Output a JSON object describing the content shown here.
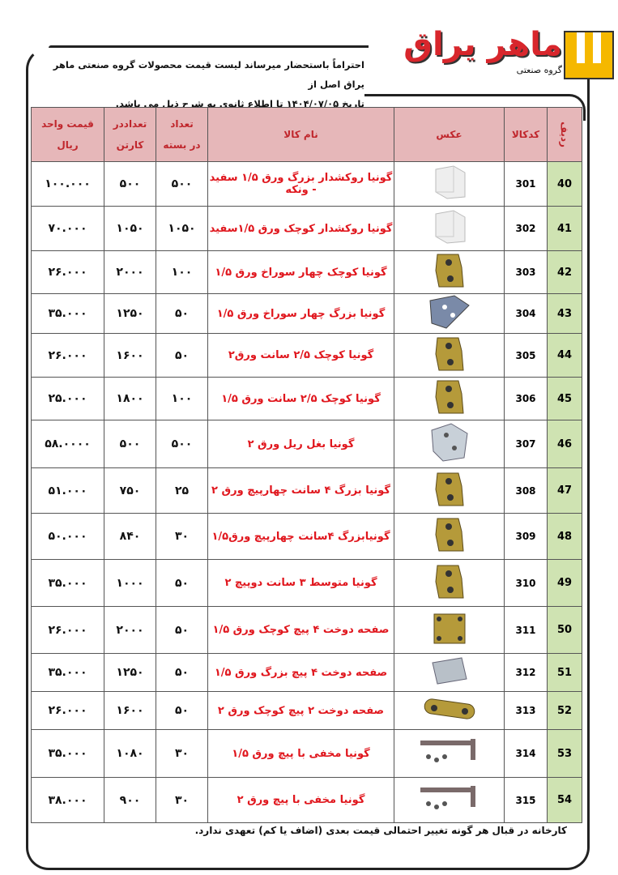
{
  "logo": {
    "name": "ماهر یراق",
    "subtitle": "گروه صنعتی",
    "brand_color": "#d8262c",
    "mark_color": "#f5b800"
  },
  "intro": {
    "line1": "احتراماً باستحضار میرساند لیست قیمت محصولات گروه صنعتی ماهر یراق اصل از",
    "line2": "تاریخ ۱۴۰۴/۰۷/۰۵ تا اطلاع ثانوی به شرح ذیل می باشد."
  },
  "table": {
    "headers": {
      "row": "ردیف",
      "code": "کدکالا",
      "image": "عکس",
      "name": "نام کالا",
      "per_pack_1": "تعداد",
      "per_pack_2": "در بسته",
      "per_carton_1": "تعداددر",
      "per_carton_2": "کارتن",
      "price_1": "قیمت واحد",
      "price_2": "ریال"
    },
    "rows": [
      {
        "row": "40",
        "code": "301",
        "name": "گونیا روکشدار بزرگ ورق ۱/۵ سفید - ونکه",
        "per_pack": "۵۰۰",
        "per_carton": "۵۰۰",
        "price": "۱۰۰.۰۰۰",
        "image": "white-plastic"
      },
      {
        "row": "41",
        "code": "302",
        "name": "گونیا روکشدار کوچک ورق ۱/۵سفید",
        "per_pack": "۱۰۵۰",
        "per_carton": "۱۰۵۰",
        "price": "۷۰.۰۰۰",
        "image": "white-plastic"
      },
      {
        "row": "42",
        "code": "303",
        "name": "گونیا کوچک چهار سوراخ ورق ۱/۵",
        "per_pack": "۱۰۰",
        "per_carton": "۲۰۰۰",
        "price": "۲۶.۰۰۰",
        "image": "gold"
      },
      {
        "row": "43",
        "code": "304",
        "name": "گونیا بزرگ چهار سوراخ ورق ۱/۵",
        "per_pack": "۵۰",
        "per_carton": "۱۲۵۰",
        "price": "۳۵.۰۰۰",
        "image": "blue"
      },
      {
        "row": "44",
        "code": "305",
        "name": "گونیا کوچک ۲/۵ سانت ورق۲",
        "per_pack": "۵۰",
        "per_carton": "۱۶۰۰",
        "price": "۲۶.۰۰۰",
        "image": "gold"
      },
      {
        "row": "45",
        "code": "306",
        "name": "گونیا کوچک ۲/۵ سانت ورق ۱/۵",
        "per_pack": "۱۰۰",
        "per_carton": "۱۸۰۰",
        "price": "۲۵.۰۰۰",
        "image": "gold"
      },
      {
        "row": "46",
        "code": "307",
        "name": "گونیا بغل ریل ورق ۲",
        "per_pack": "۵۰۰",
        "per_carton": "۵۰۰",
        "price": "۵۸.۰۰۰۰",
        "image": "silver"
      },
      {
        "row": "47",
        "code": "308",
        "name": "گونیا بزرگ ۴ سانت چهارپیچ ورق ۲",
        "per_pack": "۲۵",
        "per_carton": "۷۵۰",
        "price": "۵۱.۰۰۰",
        "image": "gold"
      },
      {
        "row": "48",
        "code": "309",
        "name": "گونیابزرگ ۴سانت چهارپیچ ورق۱/۵",
        "per_pack": "۳۰",
        "per_carton": "۸۴۰",
        "price": "۵۰.۰۰۰",
        "image": "gold"
      },
      {
        "row": "49",
        "code": "310",
        "name": "گونیا متوسط ۳ سانت دوپیچ ۲",
        "per_pack": "۵۰",
        "per_carton": "۱۰۰۰",
        "price": "۳۵.۰۰۰",
        "image": "gold"
      },
      {
        "row": "50",
        "code": "311",
        "name": "صفحه دوخت ۴ پیچ کوچک ورق ۱/۵",
        "per_pack": "۵۰",
        "per_carton": "۲۰۰۰",
        "price": "۲۶.۰۰۰",
        "image": "gold-plate"
      },
      {
        "row": "51",
        "code": "312",
        "name": "صفحه دوخت ۴ پیچ بزرگ ورق ۱/۵",
        "per_pack": "۵۰",
        "per_carton": "۱۲۵۰",
        "price": "۳۵.۰۰۰",
        "image": "silver-plate"
      },
      {
        "row": "52",
        "code": "313",
        "name": "صفحه دوخت ۲ پیچ کوچک ورق ۲",
        "per_pack": "۵۰",
        "per_carton": "۱۶۰۰",
        "price": "۲۶.۰۰۰",
        "image": "gold-strip"
      },
      {
        "row": "53",
        "code": "314",
        "name": "گونیا مخفی با پیچ ورق ۱/۵",
        "per_pack": "۳۰",
        "per_carton": "۱۰۸۰",
        "price": "۳۵.۰۰۰",
        "image": "dark-hinge"
      },
      {
        "row": "54",
        "code": "315",
        "name": "گونیا مخفی با پیچ ورق ۲",
        "per_pack": "۳۰",
        "per_carton": "۹۰۰",
        "price": "۳۸.۰۰۰",
        "image": "dark-hinge"
      }
    ]
  },
  "footer": "کارخانه در قبال هر گونه تغییر احتمالی قیمت بعدی (اضاف یا کم) تعهدی ندارد.",
  "colors": {
    "header_bg": "#e6b7b9",
    "row_number_bg": "#cfe3b2",
    "name_text": "#e0161d"
  }
}
